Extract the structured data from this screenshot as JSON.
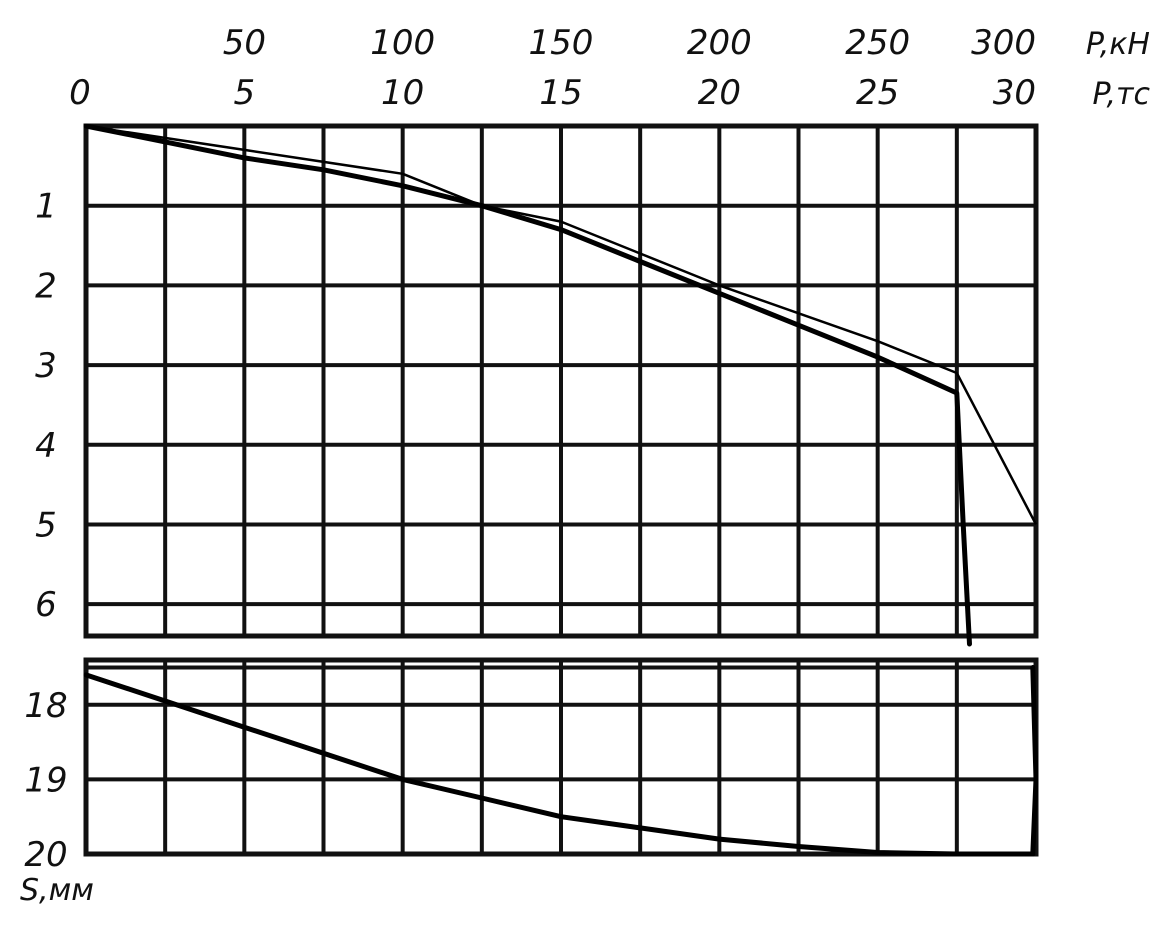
{
  "chart_data": {
    "type": "line",
    "title": "",
    "x_axes": [
      {
        "unit_label": "P,кН",
        "ticks": [
          50,
          100,
          150,
          200,
          250,
          300
        ],
        "tick_labels": [
          "50",
          "100",
          "150",
          "200",
          "250",
          "300"
        ]
      },
      {
        "unit_label": "P,тс",
        "ticks": [
          0,
          5,
          10,
          15,
          20,
          25,
          30
        ],
        "tick_labels": [
          "0",
          "5",
          "10",
          "15",
          "20",
          "25",
          "30"
        ]
      }
    ],
    "y_axis": {
      "label": "S,мм",
      "upper_panel_ticks": [
        1,
        2,
        3,
        4,
        5,
        6
      ],
      "lower_panel_ticks": [
        18,
        19,
        20
      ],
      "upper_panel_range": [
        0,
        6.4
      ],
      "lower_panel_range": [
        17.4,
        20
      ],
      "inverted": true
    },
    "xlim": [
      0,
      30
    ],
    "grid": true,
    "series": [
      {
        "x": [
          0,
          2.5,
          5,
          7.5,
          10,
          12.5,
          15,
          17.5,
          20,
          22.5,
          25,
          27.5,
          27.7,
          27.9
        ],
        "y": [
          0,
          0.2,
          0.4,
          0.55,
          0.75,
          1.0,
          1.3,
          1.7,
          2.1,
          2.5,
          2.9,
          3.35,
          5.0,
          6.5
        ]
      },
      {
        "x": [
          0,
          5,
          10,
          12.5,
          15,
          20,
          25,
          27.5,
          30
        ],
        "y": [
          0,
          0.3,
          0.6,
          1.0,
          1.2,
          2.0,
          2.7,
          3.1,
          5.0
        ]
      },
      {
        "x": [
          0,
          2.5,
          5,
          7.5,
          10,
          12.5,
          15,
          17.5,
          20,
          22.5,
          25,
          27.5,
          29.9
        ],
        "y": [
          17.6,
          17.95,
          18.3,
          18.65,
          19.0,
          19.25,
          19.5,
          19.65,
          19.8,
          19.9,
          19.98,
          20.0,
          20.0
        ]
      },
      {
        "x": [
          29.9,
          30,
          29.9
        ],
        "y": [
          17.5,
          19.0,
          20.0
        ]
      }
    ]
  }
}
